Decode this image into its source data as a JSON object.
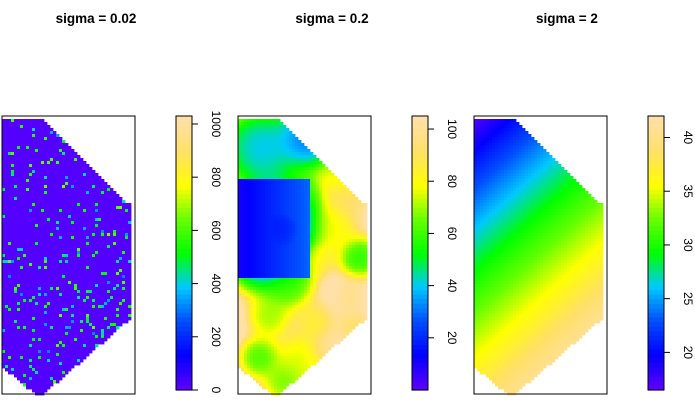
{
  "chart_data": [
    {
      "type": "heatmap",
      "title": "sigma = 0.02",
      "colorbar": {
        "ticks": [
          "0",
          "200",
          "400",
          "600",
          "800",
          "1000"
        ],
        "tick_values": [
          0,
          200,
          400,
          600,
          800,
          1000
        ],
        "range": [
          0,
          1030
        ]
      },
      "pattern": "noise"
    },
    {
      "type": "heatmap",
      "title": "sigma = 0.2",
      "colorbar": {
        "ticks": [
          "20",
          "40",
          "60",
          "80",
          "100"
        ],
        "tick_values": [
          20,
          40,
          60,
          80,
          100
        ],
        "range": [
          0,
          105
        ]
      },
      "pattern": "blobs"
    },
    {
      "type": "heatmap",
      "title": "sigma = 2",
      "colorbar": {
        "ticks": [
          "20",
          "25",
          "30",
          "35",
          "40"
        ],
        "tick_values": [
          20,
          25,
          30,
          35,
          40
        ],
        "range": [
          16.5,
          42
        ]
      },
      "pattern": "gradient"
    }
  ],
  "colors": {
    "scale": [
      "#5a00ff",
      "#0000ff",
      "#0050ff",
      "#00c8ff",
      "#00ff00",
      "#66ff00",
      "#ffff00",
      "#ffe066",
      "#ffe0a8"
    ]
  }
}
